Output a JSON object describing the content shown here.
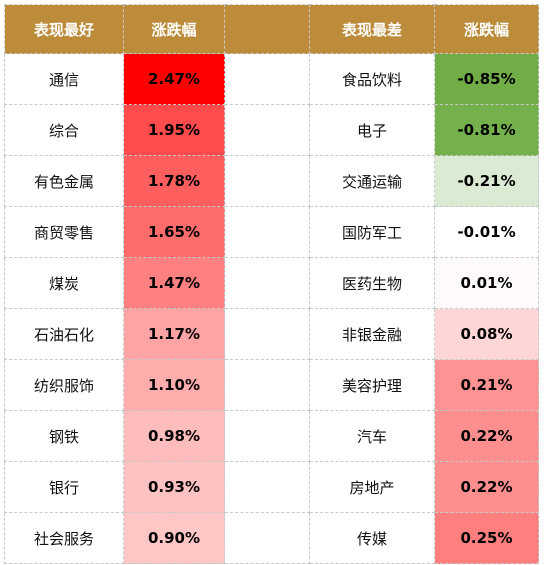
{
  "headers": {
    "best": "表现最好",
    "change_left": "涨跌幅",
    "worst": "表现最差",
    "change_right": "涨跌幅"
  },
  "rows": [
    {
      "best_name": "通信",
      "best_change": "2.47%",
      "best_color": "#ff0000",
      "worst_name": "食品饮料",
      "worst_change": "-0.85%",
      "worst_color": "#70ad47"
    },
    {
      "best_name": "综合",
      "best_change": "1.95%",
      "best_color": "#ff4b4b",
      "worst_name": "电子",
      "worst_change": "-0.81%",
      "worst_color": "#74b04c"
    },
    {
      "best_name": "有色金属",
      "best_change": "1.78%",
      "best_color": "#ff5e5e",
      "worst_name": "交通运输",
      "worst_change": "-0.21%",
      "worst_color": "#dbead3"
    },
    {
      "best_name": "商贸零售",
      "best_change": "1.65%",
      "best_color": "#ff6c6c",
      "worst_name": "国防军工",
      "worst_change": "-0.01%",
      "worst_color": "#ffffff"
    },
    {
      "best_name": "煤炭",
      "best_change": "1.47%",
      "best_color": "#ff8080",
      "worst_name": "医药生物",
      "worst_change": "0.01%",
      "worst_color": "#fffafa"
    },
    {
      "best_name": "石油石化",
      "best_change": "1.17%",
      "best_color": "#ffa4a4",
      "worst_name": "非银金融",
      "worst_change": "0.08%",
      "worst_color": "#ffd6d6"
    },
    {
      "best_name": "纺织服饰",
      "best_change": "1.10%",
      "best_color": "#ffacac",
      "worst_name": "美容护理",
      "worst_change": "0.21%",
      "worst_color": "#ff9292"
    },
    {
      "best_name": "钢铁",
      "best_change": "0.98%",
      "best_color": "#ffbcbc",
      "worst_name": "汽车",
      "worst_change": "0.22%",
      "worst_color": "#ff8e8e"
    },
    {
      "best_name": "银行",
      "best_change": "0.93%",
      "best_color": "#ffc2c2",
      "worst_name": "房地产",
      "worst_change": "0.22%",
      "worst_color": "#ff8e8e"
    },
    {
      "best_name": "社会服务",
      "best_change": "0.90%",
      "best_color": "#ffc6c6",
      "worst_name": "传媒",
      "worst_change": "0.25%",
      "worst_color": "#ff7f7f"
    }
  ]
}
